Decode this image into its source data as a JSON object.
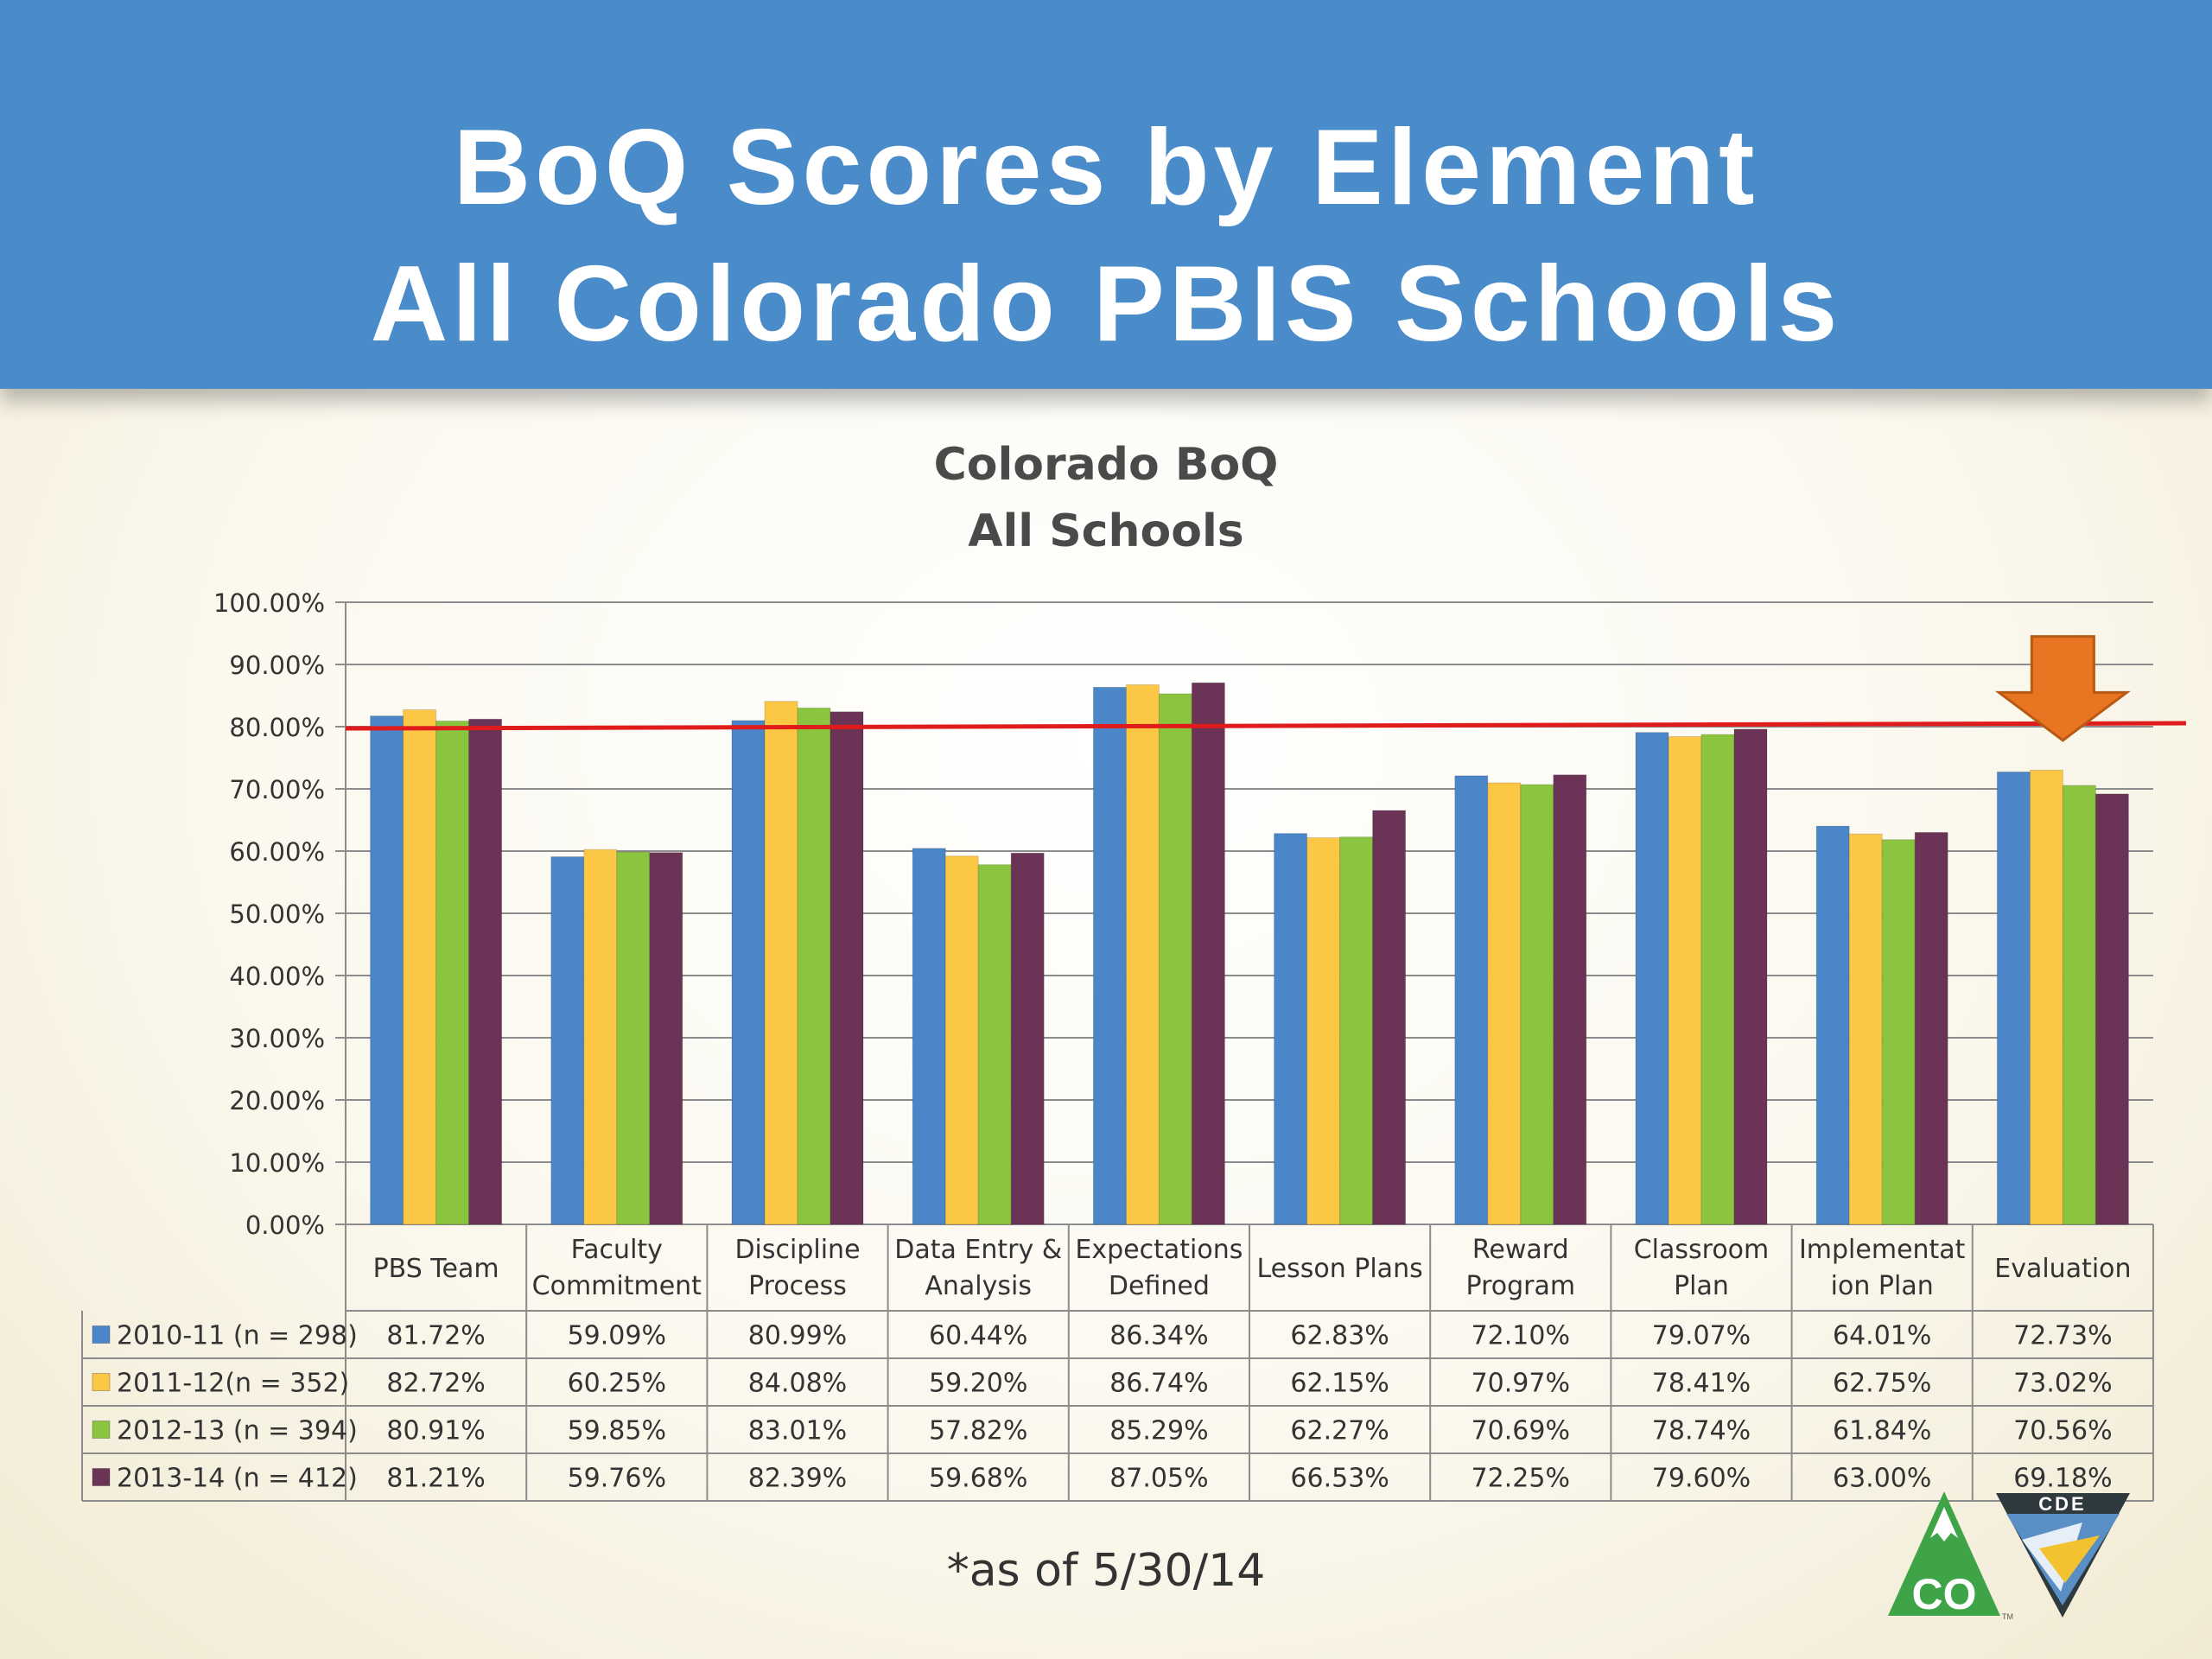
{
  "slide": {
    "title_line1": "BoQ Scores by Element",
    "title_line2": "All Colorado PBIS Schools",
    "footnote": "*as of 5/30/14"
  },
  "logos": {
    "co_text": "CO",
    "cde_text": "CDE",
    "tm": "TM"
  },
  "colors": {
    "header": "#4a8bc9",
    "threshold_line": "#e01b1b",
    "arrow": "#e87522"
  },
  "chart_data": {
    "type": "bar",
    "title": "Colorado BoQ",
    "subtitle": "All Schools",
    "categories": [
      "PBS Team",
      "Faculty Commitment",
      "Discipline Process",
      "Data Entry & Analysis",
      "Expectations Defined",
      "Lesson Plans",
      "Reward Program",
      "Classroom Plan",
      "Implementation Plan",
      "Evaluation"
    ],
    "category_label_lines": [
      [
        "PBS Team"
      ],
      [
        "Faculty",
        "Commitment"
      ],
      [
        "Discipline",
        "Process"
      ],
      [
        "Data Entry &",
        "Analysis"
      ],
      [
        "Expectations",
        "Defined"
      ],
      [
        "Lesson Plans"
      ],
      [
        "Reward",
        "Program"
      ],
      [
        "Classroom",
        "Plan"
      ],
      [
        "Implementat",
        "ion Plan"
      ],
      [
        "Evaluation"
      ]
    ],
    "series": [
      {
        "name": "2010-11 (n = 298)",
        "color": "#4a86c8",
        "values": [
          81.72,
          59.09,
          80.99,
          60.44,
          86.34,
          62.83,
          72.1,
          79.07,
          64.01,
          72.73
        ]
      },
      {
        "name": "2011-12(n = 352)",
        "color": "#fdc746",
        "values": [
          82.72,
          60.25,
          84.08,
          59.2,
          86.74,
          62.15,
          70.97,
          78.41,
          62.75,
          73.02
        ]
      },
      {
        "name": "2012-13 (n = 394)",
        "color": "#8bc43f",
        "values": [
          80.91,
          59.85,
          83.01,
          57.82,
          85.29,
          62.27,
          70.69,
          78.74,
          61.84,
          70.56
        ]
      },
      {
        "name": "2013-14 (n = 412)",
        "color": "#6b3457",
        "values": [
          81.21,
          59.76,
          82.39,
          59.68,
          87.05,
          66.53,
          72.25,
          79.6,
          63.0,
          69.18
        ]
      }
    ],
    "y_ticks": [
      "0.00%",
      "10.00%",
      "20.00%",
      "30.00%",
      "40.00%",
      "50.00%",
      "60.00%",
      "70.00%",
      "80.00%",
      "90.00%",
      "100.00%"
    ],
    "ylim": [
      0,
      100
    ],
    "y_unit": "%",
    "grid": true,
    "legend": "data table below chart",
    "reference_line": {
      "value": 80,
      "color": "#e01b1b"
    },
    "annotation": {
      "type": "arrow",
      "target_category": "Evaluation",
      "color": "#e87522"
    }
  }
}
